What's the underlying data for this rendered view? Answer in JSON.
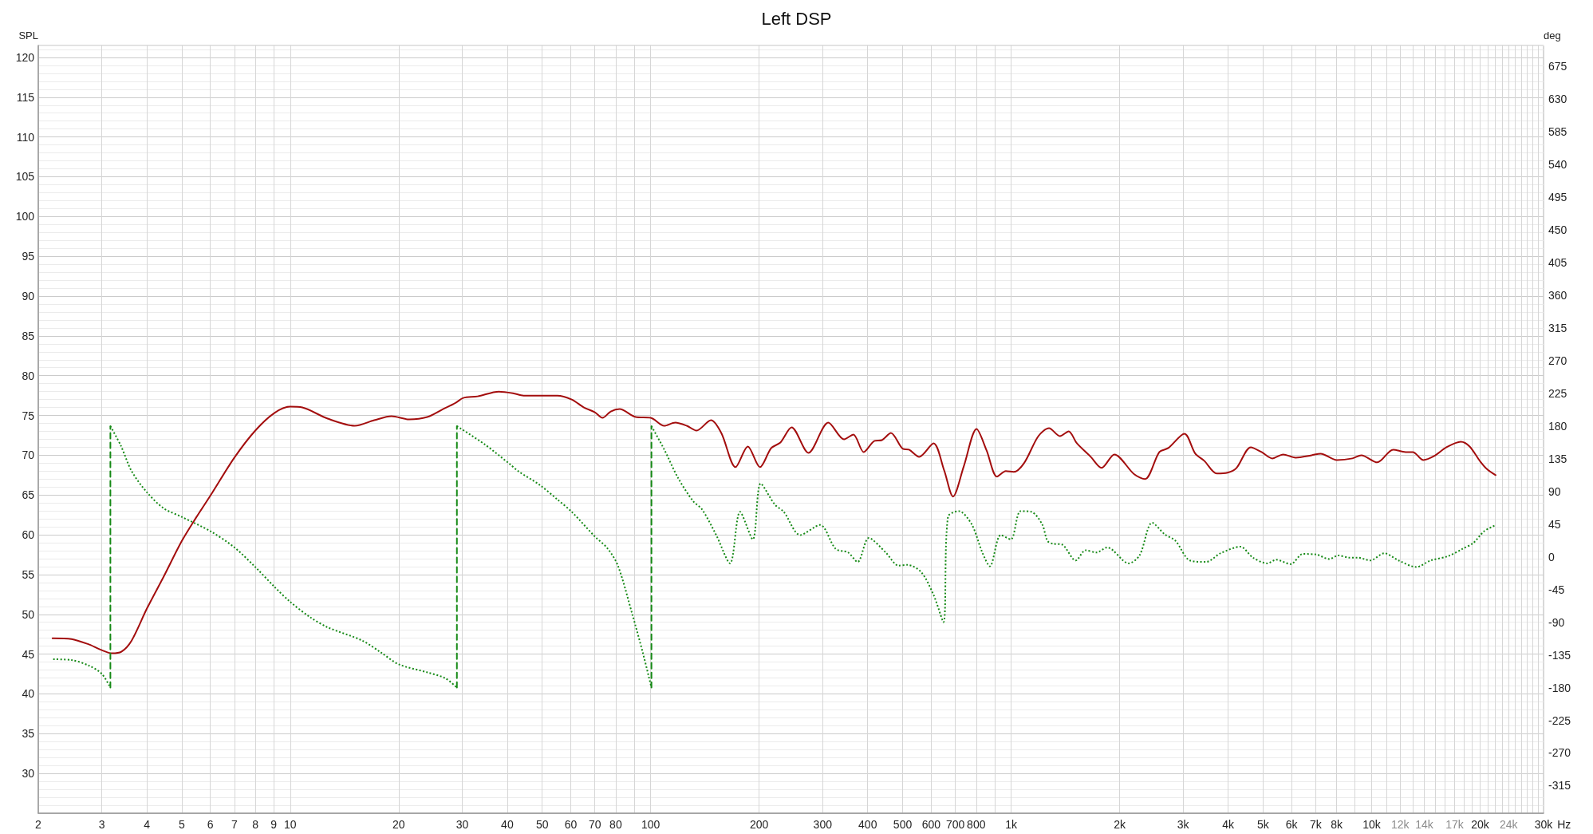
{
  "chart_data": {
    "type": "line",
    "title": "Left DSP",
    "xlabel": "Hz",
    "ylabel": "SPL",
    "y2label": "deg",
    "log": "x",
    "grid": true,
    "marker": "none",
    "xlim": [
      2,
      30000
    ],
    "xticks": [
      2,
      3,
      4,
      5,
      6,
      7,
      8,
      9,
      10,
      20,
      30,
      40,
      50,
      60,
      70,
      80,
      {
        "value": 90,
        "label": null
      },
      100,
      200,
      300,
      400,
      500,
      600,
      700,
      800,
      {
        "value": 900,
        "label": null
      },
      {
        "value": 1000,
        "label": "1k"
      },
      {
        "value": 2000,
        "label": "2k"
      },
      {
        "value": 3000,
        "label": "3k"
      },
      {
        "value": 4000,
        "label": "4k"
      },
      {
        "value": 5000,
        "label": "5k"
      },
      {
        "value": 6000,
        "label": "6k"
      },
      {
        "value": 7000,
        "label": "7k"
      },
      {
        "value": 8000,
        "label": "8k"
      },
      {
        "value": 9000,
        "label": null
      },
      {
        "value": 10000,
        "label": "10k"
      },
      {
        "value": 11000,
        "label": null
      },
      {
        "value": 12000,
        "label": "12k"
      },
      {
        "value": 13000,
        "label": null
      },
      {
        "value": 14000,
        "label": "14k"
      },
      {
        "value": 15000,
        "label": null
      },
      {
        "value": 16000,
        "label": null
      },
      {
        "value": 17000,
        "label": "17k"
      },
      {
        "value": 18000,
        "label": null
      },
      {
        "value": 19000,
        "label": null
      },
      {
        "value": 20000,
        "label": "20k"
      },
      {
        "value": 21000,
        "label": null
      },
      {
        "value": 22000,
        "label": null
      },
      {
        "value": 23000,
        "label": null
      },
      {
        "value": 24000,
        "label": "24k"
      },
      {
        "value": 25000,
        "label": null
      },
      {
        "value": 26000,
        "label": null
      },
      {
        "value": 27000,
        "label": null
      },
      {
        "value": 28000,
        "label": null
      },
      {
        "value": 29000,
        "label": null
      },
      {
        "value": 30000,
        "label": "30k"
      }
    ],
    "ylim": [
      25,
      121.5
    ],
    "yticks": [
      30,
      35,
      40,
      45,
      50,
      55,
      60,
      65,
      70,
      75,
      80,
      85,
      90,
      95,
      100,
      105,
      110,
      115,
      120
    ],
    "y2lim": [
      -353,
      704
    ],
    "y2ticks": [
      -315,
      -270,
      -225,
      -180,
      -135,
      -90,
      -45,
      0,
      45,
      90,
      135,
      180,
      225,
      270,
      315,
      360,
      405,
      450,
      495,
      540,
      585,
      630,
      675
    ],
    "series": [
      {
        "color": "#a30d0d",
        "line_style": "solid",
        "x": [
          2.19,
          2.47,
          2.77,
          3.0,
          3.2,
          3.4,
          3.63,
          4.0,
          4.45,
          5.0,
          5.47,
          6.02,
          7.0,
          8.0,
          9.03,
          10,
          10.8,
          12.7,
          15.1,
          17.1,
          19.1,
          21.4,
          24.0,
          26.3,
          28.8,
          30.2,
          33.1,
          37.9,
          41.5,
          44.4,
          49.8,
          55.1,
          60.4,
          65.3,
          70.0,
          73.5,
          77.5,
          82.0,
          90.9,
          100,
          109,
          117,
          126,
          134,
          147,
          157,
          172,
          186,
          201,
          216,
          229,
          246,
          274,
          311,
          344,
          365,
          390,
          418,
          438,
          464,
          501,
          521,
          556,
          609,
          652,
          690,
          739,
          802,
          855,
          914,
          967,
          1016,
          1086,
          1190,
          1274,
          1366,
          1444,
          1522,
          1663,
          1782,
          1934,
          2196,
          2352,
          2578,
          2729,
          3026,
          3243,
          3434,
          3720,
          3985,
          4220,
          4623,
          4952,
          5305,
          5685,
          6158,
          6817,
          7219,
          8012,
          8850,
          9363,
          10370,
          11480,
          12430,
          13010,
          13920,
          14910,
          16140,
          17680,
          18710,
          20030,
          20960,
          22090
        ],
        "values": [
          47.0,
          46.9,
          46.2,
          45.5,
          45.1,
          45.3,
          46.7,
          50.7,
          54.7,
          59.2,
          62.1,
          65.0,
          69.7,
          73.1,
          75.3,
          76.1,
          76.0,
          74.6,
          73.7,
          74.4,
          74.9,
          74.5,
          74.8,
          75.7,
          76.6,
          77.2,
          77.4,
          78.0,
          77.8,
          77.5,
          77.5,
          77.5,
          77.0,
          76.0,
          75.4,
          74.7,
          75.5,
          75.8,
          74.8,
          74.7,
          73.7,
          74.1,
          73.7,
          73.1,
          74.4,
          72.8,
          68.5,
          71.1,
          68.5,
          70.9,
          71.6,
          73.5,
          70.3,
          74.1,
          72.0,
          72.6,
          70.4,
          71.8,
          71.9,
          72.8,
          70.8,
          70.7,
          69.8,
          71.5,
          68.1,
          64.8,
          68.6,
          73.3,
          70.6,
          67.3,
          68.0,
          67.9,
          69.0,
          72.4,
          73.4,
          72.4,
          73.0,
          71.5,
          69.8,
          68.4,
          70.1,
          67.6,
          67.0,
          70.4,
          70.9,
          72.7,
          70.2,
          69.3,
          67.7,
          67.8,
          68.4,
          71.0,
          70.4,
          69.6,
          70.1,
          69.7,
          70.0,
          70.2,
          69.4,
          69.6,
          70.0,
          69.1,
          70.7,
          70.4,
          70.4,
          69.4,
          69.9,
          71.0,
          71.7,
          71.1,
          69.2,
          68.2,
          67.5
        ]
      },
      {
        "color": "#168a16",
        "line_style": "dotted",
        "axis": "y2",
        "x": [
          2.2,
          2.47,
          2.77,
          3.0,
          3.17
        ],
        "values": [
          -141,
          -142,
          -150,
          -161,
          -180
        ]
      },
      {
        "color": "#168a16",
        "line_style": "dashed",
        "axis": "y2",
        "x": [
          3.17,
          3.17
        ],
        "values": [
          -180,
          180
        ]
      },
      {
        "color": "#168a16",
        "line_style": "dotted",
        "axis": "y2",
        "x": [
          3.17,
          3.39,
          3.63,
          4.0,
          4.45,
          5.0,
          6.02,
          7.0,
          8.0,
          9.03,
          10,
          11.35,
          12.7,
          15.8,
          17.9,
          20.0,
          24.0,
          26.9,
          29.0
        ],
        "values": [
          180,
          153,
          118,
          89,
          67,
          55,
          35,
          13,
          -14,
          -41,
          -62,
          -83,
          -97,
          -115,
          -132,
          -148,
          -159,
          -167,
          -180
        ]
      },
      {
        "color": "#168a16",
        "line_style": "dashed",
        "axis": "y2",
        "x": [
          29.0,
          29.0
        ],
        "values": [
          -180,
          180
        ]
      },
      {
        "color": "#168a16",
        "line_style": "dotted",
        "axis": "y2",
        "x": [
          29.0,
          34.6,
          40.6,
          42.9,
          49.2,
          55.1,
          60.4,
          70.0,
          75.8,
          81.1,
          88.8,
          95.1,
          100.5
        ],
        "values": [
          180,
          155,
          128,
          118,
          99,
          79,
          62,
          28,
          12,
          -12,
          -78,
          -132,
          -180
        ]
      },
      {
        "color": "#168a16",
        "line_style": "dashed",
        "axis": "y2",
        "x": [
          100.5,
          100.5
        ],
        "values": [
          -180,
          180
        ]
      },
      {
        "color": "#168a16",
        "line_style": "dotted",
        "axis": "y2",
        "x": [
          100.5,
          109,
          119,
          131,
          139,
          152,
          166,
          177,
          192,
          202,
          221,
          234,
          260,
          295,
          326,
          353,
          375,
          403,
          449,
          487,
          515,
          563,
          610,
          649,
          668,
          716,
          777,
          832,
          873,
          936,
          998,
          1062,
          1138,
          1219,
          1261,
          1306,
          1383,
          1511,
          1609,
          1724,
          1847,
          2120,
          2272,
          2463,
          2668,
          2859,
          3133,
          3473,
          3813,
          4327,
          4684,
          5135,
          5439,
          5966,
          6445,
          7046,
          7637,
          8081,
          8651,
          9156,
          9910,
          10850,
          11880,
          13310,
          14580,
          16320,
          17880,
          19150,
          20500,
          21940
        ],
        "values": [
          180,
          148,
          109,
          77,
          65,
          30,
          -9,
          62,
          24,
          101,
          72,
          62,
          30,
          44,
          11,
          6,
          -7,
          26,
          6,
          -12,
          -11,
          -21,
          -53,
          -90,
          55,
          63,
          45,
          6,
          -13,
          30,
          24,
          63,
          62,
          45,
          22,
          18,
          17,
          -5,
          9,
          6,
          13,
          -9,
          2,
          47,
          31,
          22,
          -5,
          -7,
          5,
          14,
          -1,
          -9,
          -4,
          -10,
          4,
          3,
          -3,
          2,
          -1,
          -1,
          -5,
          5,
          -5,
          -14,
          -5,
          1,
          11,
          19,
          35,
          43
        ]
      }
    ]
  }
}
